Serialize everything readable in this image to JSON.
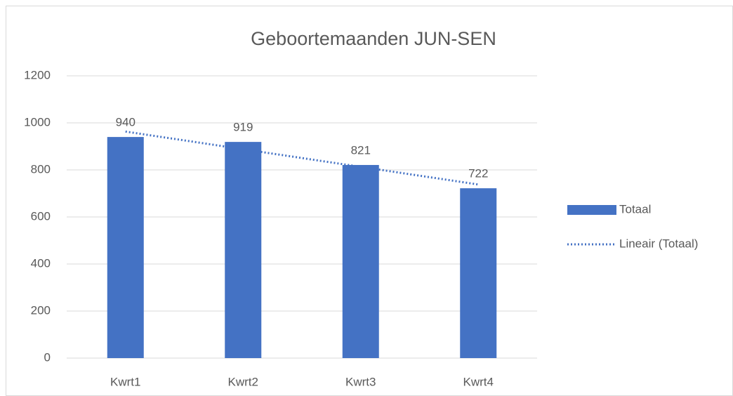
{
  "chart_data": {
    "type": "bar",
    "title": "Geboortemaanden JUN-SEN",
    "categories": [
      "Kwrt1",
      "Kwrt2",
      "Kwrt3",
      "Kwrt4"
    ],
    "series": [
      {
        "name": "Totaal",
        "color": "#4472c4",
        "type": "bar",
        "values": [
          940,
          919,
          821,
          722
        ]
      },
      {
        "name": "Lineair (Totaal)",
        "color": "#4472c4",
        "type": "trendline",
        "values": [
          963,
          888,
          813,
          738
        ]
      }
    ],
    "ylim": [
      0,
      1200
    ],
    "yticks": [
      0,
      200,
      400,
      600,
      800,
      1000,
      1200
    ],
    "grid": true,
    "legend": "right"
  }
}
